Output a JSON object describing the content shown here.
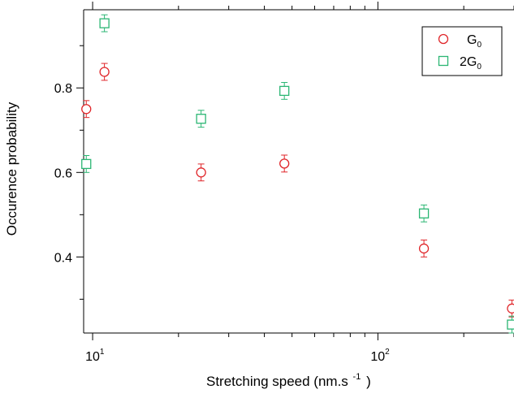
{
  "chart_data": {
    "type": "scatter",
    "xlabel": "Stretching speed (nm.s",
    "xlabel_sup": "-1",
    "xlabel_tail": ")",
    "ylabel": "Occurence probability",
    "x_scale": "log",
    "xlim": [
      9.3,
      300
    ],
    "ylim": [
      0.22,
      0.985
    ],
    "x_ticks": [
      {
        "value": 10,
        "base": "10",
        "exp": "1"
      },
      {
        "value": 100,
        "base": "10",
        "exp": "2"
      }
    ],
    "y_ticks": [
      {
        "value": 0.4,
        "label": "0.4"
      },
      {
        "value": 0.6,
        "label": "0.6"
      },
      {
        "value": 0.8,
        "label": "0.8"
      }
    ],
    "grid": false,
    "legend_position": "top-right",
    "series": [
      {
        "name": "G",
        "name_sub": "0",
        "marker": "circle",
        "color": "#e0262a",
        "points": [
          {
            "x": 9.5,
            "y": 0.75,
            "err": 0.02
          },
          {
            "x": 11,
            "y": 0.838,
            "err": 0.02
          },
          {
            "x": 24,
            "y": 0.6,
            "err": 0.02
          },
          {
            "x": 47,
            "y": 0.621,
            "err": 0.02
          },
          {
            "x": 145,
            "y": 0.42,
            "err": 0.02
          },
          {
            "x": 295,
            "y": 0.278,
            "err": 0.02
          }
        ]
      },
      {
        "name": "2G",
        "name_sub": "0",
        "marker": "square",
        "color": "#2bb673",
        "points": [
          {
            "x": 9.5,
            "y": 0.62,
            "err": 0.02
          },
          {
            "x": 11,
            "y": 0.953,
            "err": 0.02
          },
          {
            "x": 24,
            "y": 0.727,
            "err": 0.02
          },
          {
            "x": 47,
            "y": 0.793,
            "err": 0.02
          },
          {
            "x": 145,
            "y": 0.503,
            "err": 0.02
          },
          {
            "x": 295,
            "y": 0.24,
            "err": 0.02
          }
        ]
      }
    ]
  }
}
